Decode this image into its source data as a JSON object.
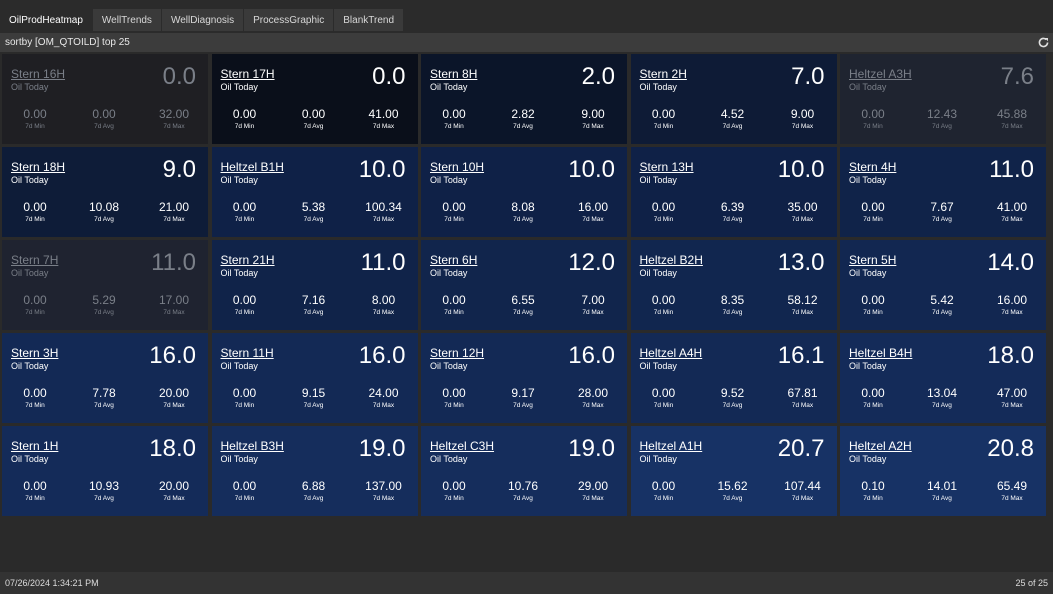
{
  "tabs": [
    {
      "label": "OilProdHeatmap",
      "active": true
    },
    {
      "label": "WellTrends",
      "active": false
    },
    {
      "label": "WellDiagnosis",
      "active": false
    },
    {
      "label": "ProcessGraphic",
      "active": false
    },
    {
      "label": "BlankTrend",
      "active": false
    }
  ],
  "sortbar": {
    "text": "sortby [OM_QTOILD] top 25",
    "refresh_icon": "refresh-icon"
  },
  "stat_labels": {
    "min": "7d Min",
    "avg": "7d Avg",
    "max": "7d Max"
  },
  "tiles": [
    {
      "name": "Stern 16H",
      "sub": "Oil Today",
      "value": "0.0",
      "min": "0.00",
      "avg": "0.00",
      "max": "32.00",
      "bg": "#1f1f23",
      "dim": true
    },
    {
      "name": "Stern 17H",
      "sub": "Oil Today",
      "value": "0.0",
      "min": "0.00",
      "avg": "0.00",
      "max": "41.00",
      "bg": "#0a0f1a",
      "dim": false
    },
    {
      "name": "Stern 8H",
      "sub": "Oil Today",
      "value": "2.0",
      "min": "0.00",
      "avg": "2.82",
      "max": "9.00",
      "bg": "#0b1529",
      "dim": false
    },
    {
      "name": "Stern 2H",
      "sub": "Oil Today",
      "value": "7.0",
      "min": "0.00",
      "avg": "4.52",
      "max": "9.00",
      "bg": "#0e1b36",
      "dim": false
    },
    {
      "name": "Heltzel A3H",
      "sub": "Oil Today",
      "value": "7.6",
      "min": "0.00",
      "avg": "12.43",
      "max": "45.88",
      "bg": "#1f2430",
      "dim": true
    },
    {
      "name": "Stern 18H",
      "sub": "Oil Today",
      "value": "9.0",
      "min": "0.00",
      "avg": "10.08",
      "max": "21.00",
      "bg": "#0e1c38",
      "dim": false
    },
    {
      "name": "Heltzel B1H",
      "sub": "Oil Today",
      "value": "10.0",
      "min": "0.00",
      "avg": "5.38",
      "max": "100.34",
      "bg": "#0f2147",
      "dim": false
    },
    {
      "name": "Stern 10H",
      "sub": "Oil Today",
      "value": "10.0",
      "min": "0.00",
      "avg": "8.08",
      "max": "16.00",
      "bg": "#0f2147",
      "dim": false
    },
    {
      "name": "Stern 13H",
      "sub": "Oil Today",
      "value": "10.0",
      "min": "0.00",
      "avg": "6.39",
      "max": "35.00",
      "bg": "#0f2147",
      "dim": false
    },
    {
      "name": "Stern 4H",
      "sub": "Oil Today",
      "value": "11.0",
      "min": "0.00",
      "avg": "7.67",
      "max": "41.00",
      "bg": "#102349",
      "dim": false
    },
    {
      "name": "Stern 7H",
      "sub": "Oil Today",
      "value": "11.0",
      "min": "0.00",
      "avg": "5.29",
      "max": "17.00",
      "bg": "#1f2330",
      "dim": true
    },
    {
      "name": "Stern 21H",
      "sub": "Oil Today",
      "value": "11.0",
      "min": "0.00",
      "avg": "7.16",
      "max": "8.00",
      "bg": "#102349",
      "dim": false
    },
    {
      "name": "Stern 6H",
      "sub": "Oil Today",
      "value": "12.0",
      "min": "0.00",
      "avg": "6.55",
      "max": "7.00",
      "bg": "#11254c",
      "dim": false
    },
    {
      "name": "Heltzel B2H",
      "sub": "Oil Today",
      "value": "13.0",
      "min": "0.00",
      "avg": "8.35",
      "max": "58.12",
      "bg": "#11264f",
      "dim": false
    },
    {
      "name": "Stern 5H",
      "sub": "Oil Today",
      "value": "14.0",
      "min": "0.00",
      "avg": "5.42",
      "max": "16.00",
      "bg": "#122751",
      "dim": false
    },
    {
      "name": "Stern 3H",
      "sub": "Oil Today",
      "value": "16.0",
      "min": "0.00",
      "avg": "7.78",
      "max": "20.00",
      "bg": "#132955",
      "dim": false
    },
    {
      "name": "Stern 11H",
      "sub": "Oil Today",
      "value": "16.0",
      "min": "0.00",
      "avg": "9.15",
      "max": "24.00",
      "bg": "#132955",
      "dim": false
    },
    {
      "name": "Stern 12H",
      "sub": "Oil Today",
      "value": "16.0",
      "min": "0.00",
      "avg": "9.17",
      "max": "28.00",
      "bg": "#132955",
      "dim": false
    },
    {
      "name": "Heltzel A4H",
      "sub": "Oil Today",
      "value": "16.1",
      "min": "0.00",
      "avg": "9.52",
      "max": "67.81",
      "bg": "#132955",
      "dim": false
    },
    {
      "name": "Heltzel B4H",
      "sub": "Oil Today",
      "value": "18.0",
      "min": "0.00",
      "avg": "13.04",
      "max": "47.00",
      "bg": "#142b59",
      "dim": false
    },
    {
      "name": "Stern 1H",
      "sub": "Oil Today",
      "value": "18.0",
      "min": "0.00",
      "avg": "10.93",
      "max": "20.00",
      "bg": "#142b59",
      "dim": false
    },
    {
      "name": "Heltzel B3H",
      "sub": "Oil Today",
      "value": "19.0",
      "min": "0.00",
      "avg": "6.88",
      "max": "137.00",
      "bg": "#152d5c",
      "dim": false
    },
    {
      "name": "Heltzel C3H",
      "sub": "Oil Today",
      "value": "19.0",
      "min": "0.00",
      "avg": "10.76",
      "max": "29.00",
      "bg": "#152d5c",
      "dim": false
    },
    {
      "name": "Heltzel A1H",
      "sub": "Oil Today",
      "value": "20.7",
      "min": "0.00",
      "avg": "15.62",
      "max": "107.44",
      "bg": "#173265",
      "dim": false
    },
    {
      "name": "Heltzel A2H",
      "sub": "Oil Today",
      "value": "20.8",
      "min": "0.10",
      "avg": "14.01",
      "max": "65.49",
      "bg": "#173265",
      "dim": false
    }
  ],
  "statusbar": {
    "timestamp": "07/26/2024 1:34:21 PM",
    "count": "25 of 25"
  }
}
